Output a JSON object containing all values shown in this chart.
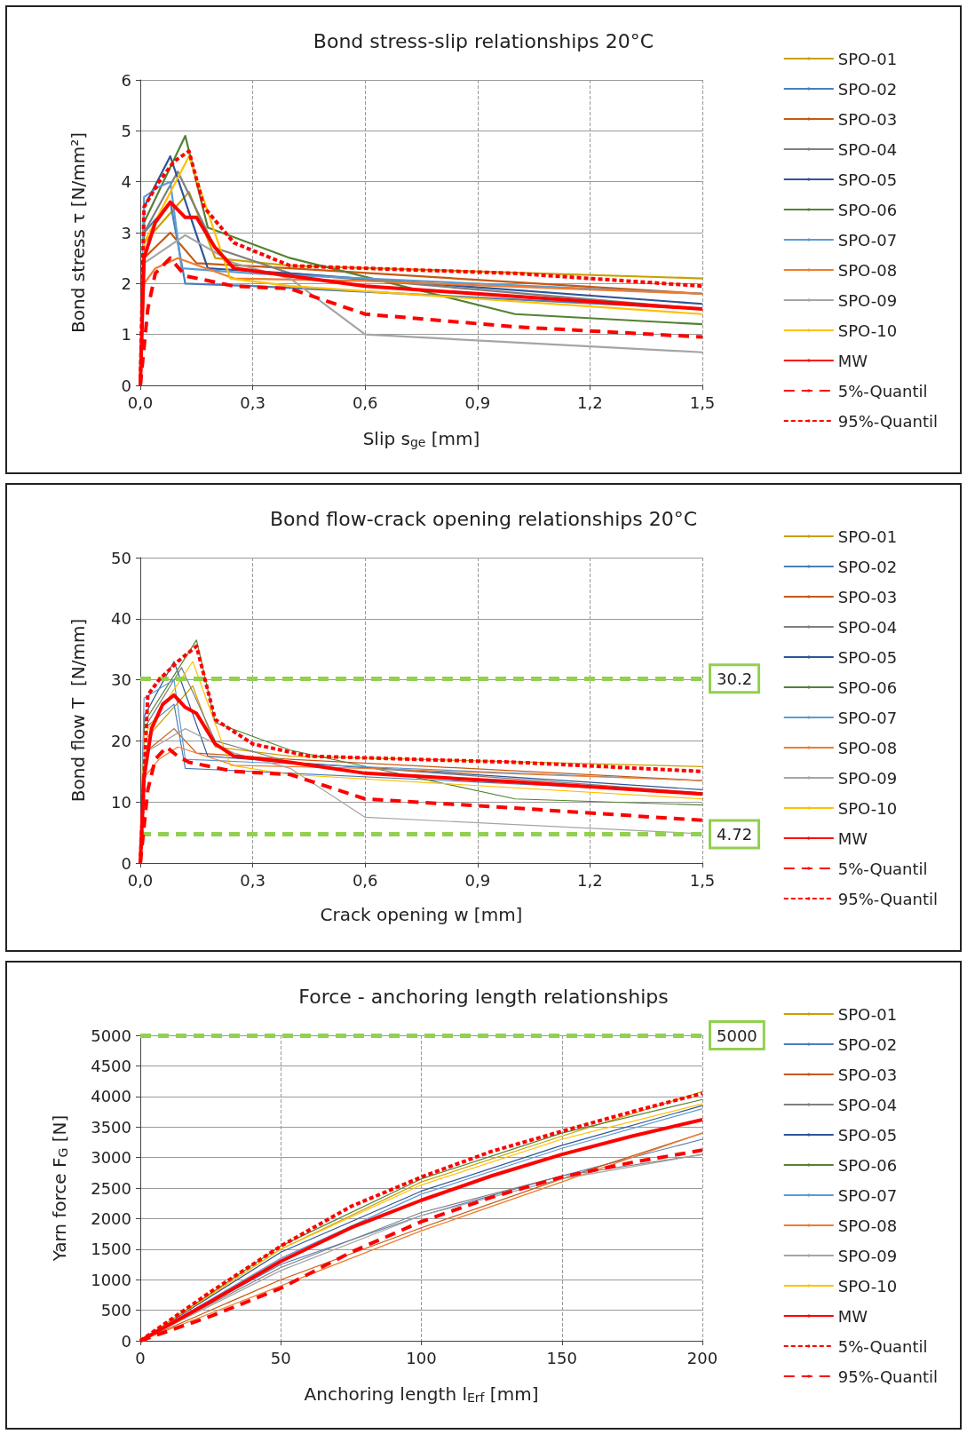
{
  "chart_data": [
    {
      "type": "line",
      "title": "Bond stress-slip relationships 20°C",
      "xlabel": "Slip s$_{ge}$ [mm]",
      "ylabel": "Bond stress τ [N/mm²]",
      "xlim": [
        0,
        1.5
      ],
      "xticks": [
        {
          "value": 0,
          "label": "0,0"
        },
        {
          "value": 0.3,
          "label": "0,3"
        },
        {
          "value": 0.6,
          "label": "0,6"
        },
        {
          "value": 0.9,
          "label": "0,9"
        },
        {
          "value": 1.2,
          "label": "1,2"
        },
        {
          "value": 1.5,
          "label": "1,5"
        }
      ],
      "ylim": [
        0,
        6
      ],
      "yticks": [
        0,
        1,
        2,
        3,
        4,
        5,
        6
      ],
      "grid": true,
      "legend": "right",
      "marker": "none",
      "series": [
        {
          "name": "SPO-01",
          "color": "#c9a000",
          "x": [
            0,
            0.01,
            0.13,
            0.2,
            0.4,
            1.5
          ],
          "values": [
            0,
            2.8,
            3.8,
            2.5,
            2.35,
            2.1
          ]
        },
        {
          "name": "SPO-02",
          "color": "#4a7ebb",
          "x": [
            0,
            0.01,
            0.08,
            0.12,
            0.3,
            1.5
          ],
          "values": [
            0,
            3.0,
            3.6,
            2.0,
            1.95,
            1.5
          ]
        },
        {
          "name": "SPO-03",
          "color": "#c55a11",
          "x": [
            0,
            0.01,
            0.08,
            0.15,
            0.4,
            1.5
          ],
          "values": [
            0,
            2.5,
            3.0,
            2.4,
            2.3,
            1.8
          ]
        },
        {
          "name": "SPO-04",
          "color": "#7f7f7f",
          "x": [
            0,
            0.01,
            0.1,
            0.2,
            0.4,
            1.5
          ],
          "values": [
            0,
            3.0,
            4.2,
            2.7,
            2.2,
            1.5
          ]
        },
        {
          "name": "SPO-05",
          "color": "#2e5597",
          "x": [
            0,
            0.01,
            0.08,
            0.18,
            0.4,
            1.5
          ],
          "values": [
            0,
            3.5,
            4.5,
            2.3,
            2.2,
            1.6
          ]
        },
        {
          "name": "SPO-06",
          "color": "#548235",
          "x": [
            0,
            0.01,
            0.12,
            0.18,
            0.4,
            1.0,
            1.5
          ],
          "values": [
            0,
            3.2,
            4.9,
            3.1,
            2.5,
            1.4,
            1.2
          ]
        },
        {
          "name": "SPO-07",
          "color": "#5b9bd5",
          "x": [
            0,
            0.01,
            0.05,
            0.08,
            0.11,
            0.3,
            1.5
          ],
          "values": [
            0,
            3.7,
            3.9,
            4.0,
            2.3,
            2.2,
            1.8
          ]
        },
        {
          "name": "SPO-08",
          "color": "#ed7d31",
          "x": [
            0,
            0.01,
            0.04,
            0.1,
            0.25,
            0.6,
            1.5
          ],
          "values": [
            0,
            2.0,
            2.3,
            2.5,
            2.1,
            2.05,
            1.8
          ]
        },
        {
          "name": "SPO-09",
          "color": "#a5a5a5",
          "x": [
            0,
            0.01,
            0.12,
            0.25,
            0.4,
            0.6,
            1.5
          ],
          "values": [
            0,
            2.4,
            2.95,
            2.4,
            2.1,
            1.0,
            0.65
          ]
        },
        {
          "name": "SPO-10",
          "color": "#ffc000",
          "x": [
            0,
            0.01,
            0.13,
            0.24,
            0.4,
            1.5
          ],
          "values": [
            0,
            2.8,
            4.5,
            2.1,
            1.95,
            1.4
          ]
        },
        {
          "name": "MW",
          "color": "#ff0000",
          "x": [
            0,
            0.01,
            0.04,
            0.08,
            0.12,
            0.15,
            0.2,
            0.25,
            0.4,
            0.6,
            1.0,
            1.5
          ],
          "values": [
            0,
            2.5,
            3.2,
            3.6,
            3.3,
            3.3,
            2.7,
            2.3,
            2.15,
            1.95,
            1.75,
            1.5
          ]
        },
        {
          "name": "5%-Quantil",
          "color": "#ff0000",
          "line_style": "dashed",
          "x": [
            0,
            0.02,
            0.04,
            0.08,
            0.12,
            0.25,
            0.4,
            0.6,
            1.0,
            1.5
          ],
          "values": [
            0,
            1.5,
            2.2,
            2.5,
            2.15,
            1.95,
            1.9,
            1.4,
            1.15,
            0.95
          ]
        },
        {
          "name": "95%-Quantil",
          "color": "#ff0000",
          "line_style": "dotted",
          "x": [
            0,
            0.01,
            0.05,
            0.09,
            0.13,
            0.17,
            0.25,
            0.4,
            1.0,
            1.5
          ],
          "values": [
            0,
            3.5,
            4.0,
            4.4,
            4.6,
            3.5,
            2.8,
            2.35,
            2.2,
            1.95
          ]
        }
      ]
    },
    {
      "type": "line",
      "title": "Bond flow-crack opening relationships 20°C",
      "xlabel": "Crack opening w [mm]",
      "ylabel": "Bond flow T  [N/mm]",
      "xlim": [
        0,
        1.5
      ],
      "xticks": [
        {
          "value": 0,
          "label": "0,0"
        },
        {
          "value": 0.3,
          "label": "0,3"
        },
        {
          "value": 0.6,
          "label": "0,6"
        },
        {
          "value": 0.9,
          "label": "0,9"
        },
        {
          "value": 1.2,
          "label": "1,2"
        },
        {
          "value": 1.5,
          "label": "1,5"
        }
      ],
      "ylim": [
        0,
        50
      ],
      "yticks": [
        0,
        10,
        20,
        30,
        40,
        50
      ],
      "grid": true,
      "legend": "right",
      "marker": "none",
      "ref_lines": [
        {
          "axis": "y",
          "value": 30.2,
          "label": "30.2",
          "color": "#92d050",
          "line_style": "dashed"
        },
        {
          "axis": "y",
          "value": 4.72,
          "label": "4.72",
          "color": "#92d050",
          "line_style": "dashed"
        }
      ],
      "series": [
        {
          "name": "SPO-01",
          "color": "#c9a000",
          "x": [
            0,
            0.01,
            0.14,
            0.2,
            0.4,
            1.5
          ],
          "values": [
            0,
            20,
            29,
            19,
            17.5,
            15.8
          ]
        },
        {
          "name": "SPO-02",
          "color": "#4a7ebb",
          "x": [
            0,
            0.01,
            0.09,
            0.12,
            0.3,
            1.5
          ],
          "values": [
            0,
            22,
            26,
            15.5,
            15,
            11.5
          ]
        },
        {
          "name": "SPO-03",
          "color": "#c55a11",
          "x": [
            0,
            0.01,
            0.09,
            0.15,
            0.4,
            1.5
          ],
          "values": [
            0,
            18,
            22,
            18,
            17,
            13.5
          ]
        },
        {
          "name": "SPO-04",
          "color": "#7f7f7f",
          "x": [
            0,
            0.01,
            0.11,
            0.2,
            0.4,
            1.5
          ],
          "values": [
            0,
            22,
            32,
            20,
            16.5,
            11.5
          ]
        },
        {
          "name": "SPO-05",
          "color": "#2e5597",
          "x": [
            0,
            0.01,
            0.09,
            0.18,
            0.4,
            1.5
          ],
          "values": [
            0,
            24,
            33,
            17.5,
            16.5,
            12
          ]
        },
        {
          "name": "SPO-06",
          "color": "#548235",
          "x": [
            0,
            0.01,
            0.15,
            0.2,
            0.4,
            1.0,
            1.5
          ],
          "values": [
            0,
            23,
            36.5,
            23,
            18.5,
            10.5,
            9.5
          ]
        },
        {
          "name": "SPO-07",
          "color": "#5b9bd5",
          "x": [
            0,
            0.01,
            0.09,
            0.12,
            0.3,
            1.5
          ],
          "values": [
            0,
            27,
            30,
            17,
            16.5,
            13.5
          ]
        },
        {
          "name": "SPO-08",
          "color": "#ed7d31",
          "x": [
            0,
            0.01,
            0.05,
            0.1,
            0.25,
            0.6,
            1.5
          ],
          "values": [
            0,
            14,
            17,
            19,
            16,
            15.5,
            13.5
          ]
        },
        {
          "name": "SPO-09",
          "color": "#a5a5a5",
          "x": [
            0,
            0.01,
            0.12,
            0.25,
            0.4,
            0.6,
            1.5
          ],
          "values": [
            0,
            18,
            22,
            18,
            15.5,
            7.5,
            4.8
          ]
        },
        {
          "name": "SPO-10",
          "color": "#ffc000",
          "x": [
            0,
            0.01,
            0.14,
            0.24,
            0.4,
            1.5
          ],
          "values": [
            0,
            21,
            33,
            16,
            14.5,
            10.5
          ]
        },
        {
          "name": "MW",
          "color": "#ff0000",
          "x": [
            0,
            0.01,
            0.03,
            0.06,
            0.09,
            0.12,
            0.15,
            0.2,
            0.25,
            0.4,
            0.6,
            1.0,
            1.5
          ],
          "values": [
            0,
            14,
            22,
            26,
            27.5,
            25.5,
            24.5,
            19.5,
            17.5,
            16.5,
            14.7,
            13.3,
            11.3
          ]
        },
        {
          "name": "5%-Quantil",
          "color": "#ff0000",
          "line_style": "dashed",
          "x": [
            0,
            0.02,
            0.04,
            0.07,
            0.1,
            0.13,
            0.25,
            0.4,
            0.6,
            1.0,
            1.5
          ],
          "values": [
            0,
            12,
            17,
            19,
            17.5,
            16.5,
            15,
            14.5,
            10.5,
            9,
            7
          ]
        },
        {
          "name": "95%-Quantil",
          "color": "#ff0000",
          "line_style": "dotted",
          "x": [
            0,
            0.02,
            0.05,
            0.1,
            0.15,
            0.2,
            0.3,
            0.45,
            1.0,
            1.5
          ],
          "values": [
            0,
            27.5,
            30,
            33,
            35.5,
            23.5,
            19.5,
            17.5,
            16.5,
            15
          ]
        }
      ]
    },
    {
      "type": "line",
      "title": "Force - anchoring length relationships",
      "xlabel": "Anchoring length l$_{Erf}$ [mm]",
      "ylabel": "Yarn force F$_{G}$ [N]",
      "xlim": [
        0,
        200
      ],
      "xticks": [
        0,
        50,
        100,
        150,
        200
      ],
      "ylim": [
        0,
        5000
      ],
      "yticks": [
        0,
        500,
        1000,
        1500,
        2000,
        2500,
        3000,
        3500,
        4000,
        4500,
        5000
      ],
      "grid": true,
      "legend": "right",
      "marker": "none",
      "ref_lines": [
        {
          "axis": "y",
          "value": 5000,
          "label": "5000",
          "color": "#92d050",
          "line_style": "dashed"
        }
      ],
      "series": [
        {
          "name": "SPO-01",
          "color": "#c9a000",
          "x": [
            0,
            50,
            100,
            150,
            200
          ],
          "values": [
            0,
            1500,
            2600,
            3350,
            4080
          ]
        },
        {
          "name": "SPO-02",
          "color": "#4a7ebb",
          "x": [
            0,
            50,
            100,
            150,
            200
          ],
          "values": [
            0,
            1250,
            2050,
            2700,
            3300
          ]
        },
        {
          "name": "SPO-03",
          "color": "#c55a11",
          "x": [
            0,
            50,
            100,
            150,
            200
          ],
          "values": [
            0,
            1000,
            1850,
            2650,
            3400
          ]
        },
        {
          "name": "SPO-04",
          "color": "#7f7f7f",
          "x": [
            0,
            50,
            100,
            150,
            200
          ],
          "values": [
            0,
            1200,
            2100,
            2700,
            3050
          ]
        },
        {
          "name": "SPO-05",
          "color": "#2e5597",
          "x": [
            0,
            50,
            100,
            150,
            200
          ],
          "values": [
            0,
            1450,
            2450,
            3200,
            3850
          ]
        },
        {
          "name": "SPO-06",
          "color": "#548235",
          "x": [
            0,
            50,
            100,
            150,
            200
          ],
          "values": [
            0,
            1550,
            2650,
            3400,
            3950
          ]
        },
        {
          "name": "SPO-07",
          "color": "#5b9bd5",
          "x": [
            0,
            50,
            100,
            150,
            200
          ],
          "values": [
            0,
            1350,
            2400,
            3150,
            3800
          ]
        },
        {
          "name": "SPO-08",
          "color": "#ed7d31",
          "x": [
            0,
            50,
            100,
            150,
            200
          ],
          "values": [
            0,
            900,
            1800,
            2600,
            3400
          ]
        },
        {
          "name": "SPO-09",
          "color": "#a5a5a5",
          "x": [
            0,
            50,
            100,
            150,
            200
          ],
          "values": [
            0,
            1150,
            2050,
            2650,
            3050
          ]
        },
        {
          "name": "SPO-10",
          "color": "#ffc000",
          "x": [
            0,
            50,
            100,
            150,
            200
          ],
          "values": [
            0,
            1500,
            2550,
            3300,
            3880
          ]
        },
        {
          "name": "MW",
          "color": "#ff0000",
          "x": [
            0,
            25,
            50,
            75,
            100,
            125,
            150,
            175,
            200
          ],
          "values": [
            0,
            640,
            1300,
            1850,
            2300,
            2700,
            3050,
            3350,
            3620
          ]
        },
        {
          "name": "5%-Quantil",
          "color": "#ff0000",
          "line_style": "dotted",
          "x": [
            0,
            25,
            50,
            75,
            100,
            125,
            150,
            175,
            200
          ],
          "values": [
            0,
            800,
            1550,
            2200,
            2680,
            3100,
            3430,
            3750,
            4050
          ]
        },
        {
          "name": "95%-Quantil",
          "color": "#ff0000",
          "line_style": "dashed",
          "x": [
            0,
            25,
            50,
            75,
            100,
            125,
            150,
            175,
            200
          ],
          "values": [
            0,
            400,
            860,
            1450,
            1950,
            2350,
            2680,
            2920,
            3120
          ]
        }
      ]
    }
  ]
}
